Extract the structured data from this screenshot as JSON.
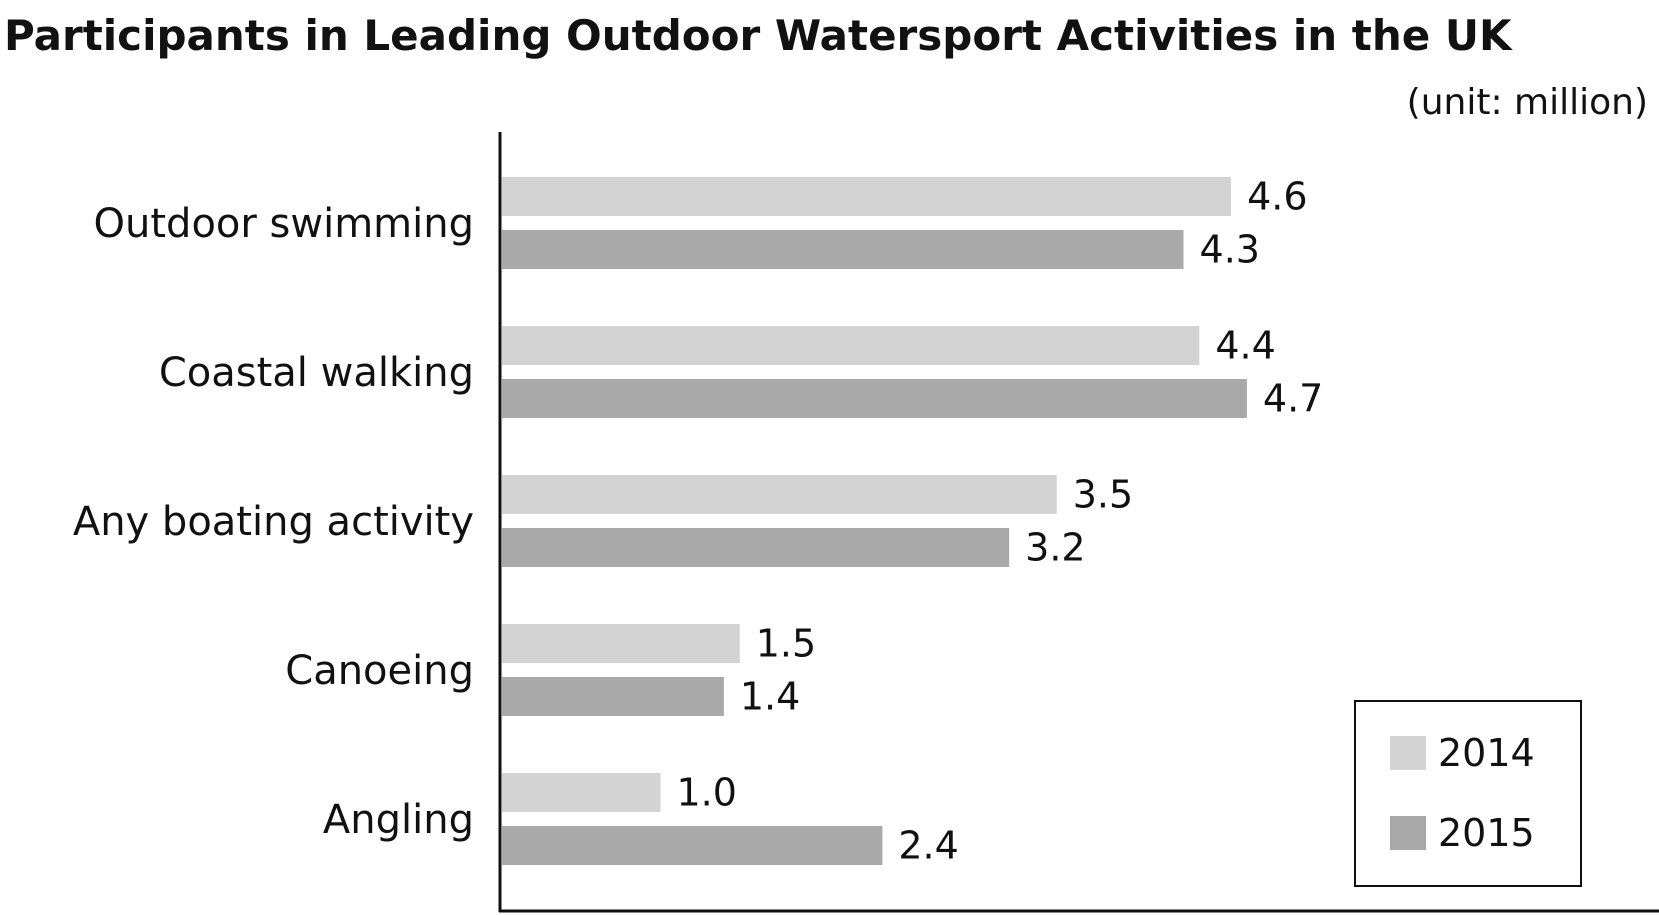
{
  "chart_data": {
    "type": "bar",
    "orientation": "horizontal",
    "title": "Participants in Leading Outdoor Watersport Activities in the UK",
    "unit_note": "(unit: million)",
    "categories": [
      "Outdoor swimming",
      "Coastal walking",
      "Any boating activity",
      "Canoeing",
      "Angling"
    ],
    "series": [
      {
        "name": "2014",
        "values": [
          4.6,
          4.4,
          3.5,
          1.5,
          1.0
        ],
        "color": "#d3d3d3"
      },
      {
        "name": "2015",
        "values": [
          4.3,
          4.7,
          3.2,
          1.4,
          2.4
        ],
        "color": "#a9a9a9"
      }
    ],
    "value_labels": [
      [
        "4.6",
        "4.4",
        "3.5",
        "1.5",
        "1.0"
      ],
      [
        "4.3",
        "4.7",
        "3.2",
        "1.4",
        "2.4"
      ]
    ],
    "xlim": [
      0,
      7.3
    ],
    "grid": false,
    "legend_position": "bottom-right"
  }
}
